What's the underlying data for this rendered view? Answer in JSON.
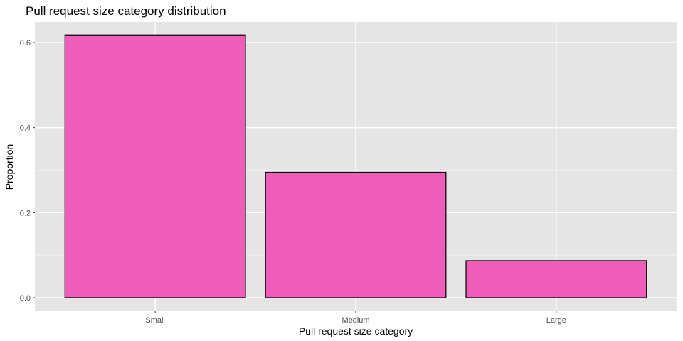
{
  "chart_data": {
    "type": "bar",
    "title": "Pull request size category distribution",
    "xlabel": "Pull request size category",
    "ylabel": "Proportion",
    "categories": [
      "Small",
      "Medium",
      "Large"
    ],
    "values": [
      0.618,
      0.295,
      0.087
    ],
    "ylim": [
      0,
      0.65
    ],
    "yticks": [
      0.0,
      0.2,
      0.4,
      0.6
    ],
    "ytick_labels": [
      "0.0",
      "0.2",
      "0.4",
      "0.6"
    ],
    "grid": true,
    "colors": {
      "bar_fill": "#ee5db9",
      "bar_stroke": "#000000",
      "panel_background": "#e5e5e5",
      "grid_major": "#ffffff",
      "grid_minor": "#f2f2f2"
    }
  }
}
